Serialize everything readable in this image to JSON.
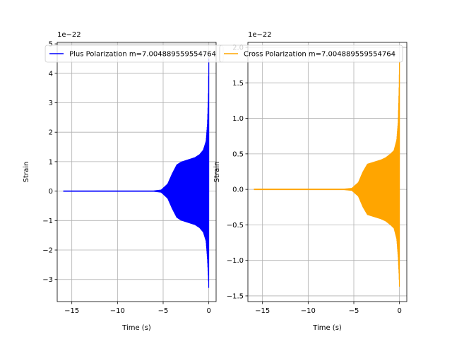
{
  "chart_data": [
    {
      "type": "line",
      "xlabel": "Time (s)",
      "ylabel": "Strain",
      "offset_text": "1e−22",
      "xlim": [
        -16.6,
        0.8
      ],
      "ylim": [
        -3.75,
        5.05
      ],
      "xticks": [
        -15,
        -10,
        -5,
        0
      ],
      "xtick_labels": [
        "−15",
        "−10",
        "−5",
        "0"
      ],
      "yticks": [
        -3,
        -2,
        -1,
        0,
        1,
        2,
        3,
        4,
        5
      ],
      "ytick_labels": [
        "−3",
        "−2",
        "−1",
        "0",
        "1",
        "2",
        "3",
        "4",
        "5"
      ],
      "grid": true,
      "legend_position": "top-right",
      "series": [
        {
          "name": "Plus Polarization m=7.004889559554764",
          "color": "#0000ff",
          "envelope": {
            "x": [
              -15.9,
              -10,
              -6,
              -5.2,
              -4.5,
              -4,
              -3.5,
              -3,
              -2.5,
              -2,
              -1.5,
              -1,
              -0.6,
              -0.3,
              -0.15,
              -0.05,
              0
            ],
            "upper": [
              0.02,
              0.02,
              0.02,
              0.05,
              0.25,
              0.6,
              0.9,
              1.0,
              1.05,
              1.1,
              1.15,
              1.25,
              1.4,
              1.7,
              2.3,
              3.2,
              4.5
            ],
            "lower": [
              -0.02,
              -0.02,
              -0.02,
              -0.05,
              -0.25,
              -0.6,
              -0.9,
              -1.0,
              -1.05,
              -1.1,
              -1.15,
              -1.25,
              -1.4,
              -1.7,
              -2.3,
              -2.9,
              -3.4
            ]
          }
        }
      ]
    },
    {
      "type": "line",
      "xlabel": "Time (s)",
      "ylabel": "Strain",
      "offset_text": "1e−22",
      "xlim": [
        -16.6,
        0.8
      ],
      "ylim": [
        -1.58,
        2.07
      ],
      "xticks": [
        -15,
        -10,
        -5,
        0
      ],
      "xtick_labels": [
        "−15",
        "−10",
        "−5",
        "0"
      ],
      "yticks": [
        -1.5,
        -1.0,
        -0.5,
        0.0,
        0.5,
        1.0,
        1.5,
        2.0
      ],
      "ytick_labels": [
        "−1.5",
        "−1.0",
        "−0.5",
        "0.0",
        "0.5",
        "1.0",
        "1.5",
        "2.0"
      ],
      "grid": true,
      "legend_position": "top-right",
      "series": [
        {
          "name": "Cross Polarization m=7.004889559554764",
          "color": "#ffa500",
          "envelope": {
            "x": [
              -15.9,
              -10,
              -6,
              -5.2,
              -4.5,
              -4,
              -3.5,
              -3,
              -2.5,
              -2,
              -1.5,
              -1,
              -0.6,
              -0.3,
              -0.15,
              -0.05,
              0
            ],
            "upper": [
              0.01,
              0.01,
              0.01,
              0.02,
              0.1,
              0.25,
              0.36,
              0.38,
              0.4,
              0.42,
              0.45,
              0.5,
              0.55,
              0.7,
              0.95,
              1.4,
              1.8
            ],
            "lower": [
              -0.01,
              -0.01,
              -0.01,
              -0.02,
              -0.1,
              -0.25,
              -0.36,
              -0.38,
              -0.4,
              -0.42,
              -0.45,
              -0.5,
              -0.55,
              -0.7,
              -0.95,
              -1.2,
              -1.42
            ]
          }
        }
      ]
    }
  ]
}
